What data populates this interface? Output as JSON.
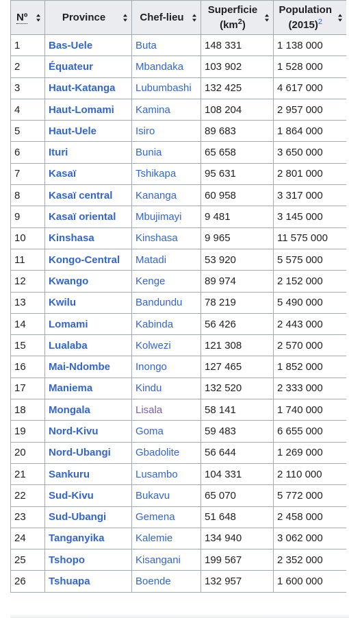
{
  "headers": {
    "no": "Nº",
    "province": "Province",
    "chef_lieu": "Chef-lieu",
    "superficie_line1": "Superficie",
    "superficie_line2_pre": "(km",
    "superficie_sup": "2",
    "superficie_line2_post": ")",
    "population_line1": "Population",
    "population_line2": "(2015)",
    "population_ref": "2"
  },
  "rows": [
    {
      "no": "1",
      "province": "Bas-Uele",
      "chef_lieu": "Buta",
      "superficie": "148 331",
      "population": "1 138 000"
    },
    {
      "no": "2",
      "province": "Équateur",
      "chef_lieu": "Mbandaka",
      "superficie": "103 902",
      "population": "1 528 000"
    },
    {
      "no": "3",
      "province": "Haut-Katanga",
      "chef_lieu": "Lubumbashi",
      "superficie": "132 425",
      "population": "4 617 000"
    },
    {
      "no": "4",
      "province": "Haut-Lomami",
      "chef_lieu": "Kamina",
      "superficie": "108 204",
      "population": "2 957 000"
    },
    {
      "no": "5",
      "province": "Haut-Uele",
      "chef_lieu": "Isiro",
      "superficie": "89 683",
      "population": "1 864 000"
    },
    {
      "no": "6",
      "province": "Ituri",
      "chef_lieu": "Bunia",
      "superficie": "65 658",
      "population": "3 650 000"
    },
    {
      "no": "7",
      "province": "Kasaï",
      "chef_lieu": "Tshikapa",
      "superficie": "95 631",
      "population": "2 801 000"
    },
    {
      "no": "8",
      "province": "Kasaï central",
      "chef_lieu": "Kananga",
      "superficie": "60 958",
      "population": "3 317 000"
    },
    {
      "no": "9",
      "province": "Kasaï oriental",
      "chef_lieu": "Mbujimayi",
      "superficie": "9 481",
      "population": "3 145 000"
    },
    {
      "no": "10",
      "province": "Kinshasa",
      "chef_lieu": "Kinshasa",
      "superficie": "9 965",
      "population": "11 575 000"
    },
    {
      "no": "11",
      "province": "Kongo-Central",
      "chef_lieu": "Matadi",
      "superficie": "53 920",
      "population": "5 575 000"
    },
    {
      "no": "12",
      "province": "Kwango",
      "chef_lieu": "Kenge",
      "superficie": "89 974",
      "population": "2 152 000"
    },
    {
      "no": "13",
      "province": "Kwilu",
      "chef_lieu": "Bandundu",
      "superficie": "78 219",
      "population": "5 490 000"
    },
    {
      "no": "14",
      "province": "Lomami",
      "chef_lieu": "Kabinda",
      "superficie": "56 426",
      "population": "2 443 000"
    },
    {
      "no": "15",
      "province": "Lualaba",
      "chef_lieu": "Kolwezi",
      "superficie": "121 308",
      "population": "2 570 000"
    },
    {
      "no": "16",
      "province": "Mai-Ndombe",
      "chef_lieu": "Inongo",
      "superficie": "127 465",
      "population": "1 852 000"
    },
    {
      "no": "17",
      "province": "Maniema",
      "chef_lieu": "Kindu",
      "superficie": "132 520",
      "population": "2 333 000"
    },
    {
      "no": "18",
      "province": "Mongala",
      "chef_lieu": "Lisala",
      "chef_visited": true,
      "superficie": "58 141",
      "population": "1 740 000"
    },
    {
      "no": "19",
      "province": "Nord-Kivu",
      "chef_lieu": "Goma",
      "superficie": "59 483",
      "population": "6 655 000"
    },
    {
      "no": "20",
      "province": "Nord-Ubangi",
      "chef_lieu": "Gbadolite",
      "superficie": "56 644",
      "population": "1 269 000"
    },
    {
      "no": "21",
      "province": "Sankuru",
      "chef_lieu": "Lusambo",
      "superficie": "104 331",
      "population": "2 110 000"
    },
    {
      "no": "22",
      "province": "Sud-Kivu",
      "chef_lieu": "Bukavu",
      "superficie": "65 070",
      "population": "5 772 000"
    },
    {
      "no": "23",
      "province": "Sud-Ubangi",
      "chef_lieu": "Gemena",
      "superficie": "51 648",
      "population": "2 458 000"
    },
    {
      "no": "24",
      "province": "Tanganyika",
      "chef_lieu": "Kalemie",
      "superficie": "134 940",
      "population": "3 062 000"
    },
    {
      "no": "25",
      "province": "Tshopo",
      "chef_lieu": "Kisangani",
      "superficie": "199 567",
      "population": "2 352 000"
    },
    {
      "no": "26",
      "province": "Tshuapa",
      "chef_lieu": "Boende",
      "superficie": "132 957",
      "population": "1 600 000"
    }
  ],
  "colors": {
    "link": "#3366cc",
    "visited_link": "#795cb2",
    "header_bg": "#eaecf0",
    "border": "#a2a9b1"
  },
  "icons": {
    "sort": "sort-arrows-icon"
  }
}
